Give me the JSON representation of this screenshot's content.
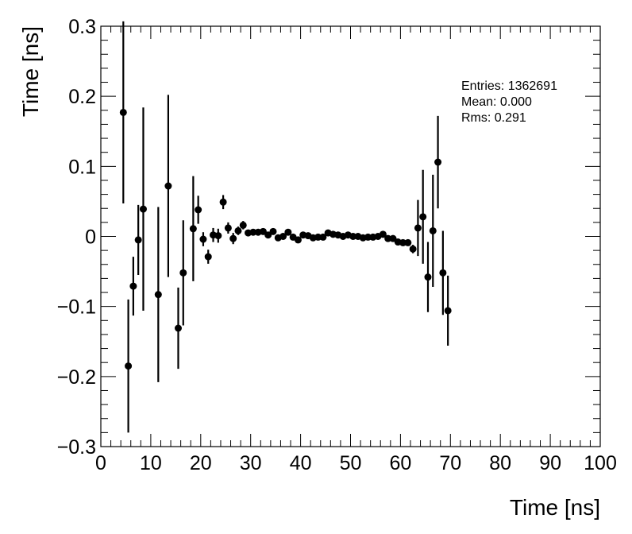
{
  "chart_data": {
    "type": "scatter",
    "xlabel": "Time [ns]",
    "ylabel": "Time [ns]",
    "xlim": [
      0,
      100
    ],
    "ylim": [
      -0.3,
      0.3
    ],
    "x_ticks": [
      0,
      10,
      20,
      30,
      40,
      50,
      60,
      70,
      80,
      90,
      100
    ],
    "y_ticks": [
      -0.3,
      -0.2,
      -0.1,
      0,
      0.1,
      0.2,
      0.3
    ],
    "x_tick_labels": [
      "0",
      "10",
      "20",
      "30",
      "40",
      "50",
      "60",
      "70",
      "80",
      "90",
      "100"
    ],
    "y_tick_labels": [
      "−0.3",
      "−0.2",
      "−0.1",
      "0",
      "0.1",
      "0.2",
      "0.3"
    ],
    "grid": false,
    "stats": {
      "entries": "Entries: 1362691",
      "mean": "Mean: 0.000",
      "rms": "Rms: 0.291"
    },
    "points": [
      {
        "x": 4.5,
        "y": 0.177,
        "err": 0.13
      },
      {
        "x": 5.5,
        "y": -0.185,
        "err": 0.095
      },
      {
        "x": 6.5,
        "y": -0.071,
        "err": 0.042
      },
      {
        "x": 7.5,
        "y": -0.005,
        "err": 0.05
      },
      {
        "x": 8.5,
        "y": 0.039,
        "err": 0.145
      },
      {
        "x": 11.5,
        "y": -0.083,
        "err": 0.125
      },
      {
        "x": 13.5,
        "y": 0.072,
        "err": 0.13
      },
      {
        "x": 15.5,
        "y": -0.131,
        "err": 0.058
      },
      {
        "x": 16.5,
        "y": -0.052,
        "err": 0.075
      },
      {
        "x": 18.5,
        "y": 0.011,
        "err": 0.075
      },
      {
        "x": 19.5,
        "y": 0.038,
        "err": 0.02
      },
      {
        "x": 20.5,
        "y": -0.004,
        "err": 0.01
      },
      {
        "x": 21.5,
        "y": -0.029,
        "err": 0.01
      },
      {
        "x": 22.5,
        "y": 0.002,
        "err": 0.01
      },
      {
        "x": 23.5,
        "y": 0.001,
        "err": 0.01
      },
      {
        "x": 24.5,
        "y": 0.049,
        "err": 0.01
      },
      {
        "x": 25.5,
        "y": 0.012,
        "err": 0.008
      },
      {
        "x": 26.5,
        "y": -0.003,
        "err": 0.008
      },
      {
        "x": 27.5,
        "y": 0.008,
        "err": 0.006
      },
      {
        "x": 28.5,
        "y": 0.016,
        "err": 0.006
      },
      {
        "x": 29.5,
        "y": 0.005,
        "err": 0.004
      },
      {
        "x": 30.5,
        "y": 0.006,
        "err": 0.004
      },
      {
        "x": 31.5,
        "y": 0.006,
        "err": 0.004
      },
      {
        "x": 32.5,
        "y": 0.007,
        "err": 0.004
      },
      {
        "x": 33.5,
        "y": 0.002,
        "err": 0.004
      },
      {
        "x": 34.5,
        "y": 0.007,
        "err": 0.004
      },
      {
        "x": 35.5,
        "y": -0.002,
        "err": 0.004
      },
      {
        "x": 36.5,
        "y": 0.0,
        "err": 0.004
      },
      {
        "x": 37.5,
        "y": 0.006,
        "err": 0.004
      },
      {
        "x": 38.5,
        "y": -0.001,
        "err": 0.004
      },
      {
        "x": 39.5,
        "y": -0.005,
        "err": 0.004
      },
      {
        "x": 40.5,
        "y": 0.002,
        "err": 0.004
      },
      {
        "x": 41.5,
        "y": 0.001,
        "err": 0.004
      },
      {
        "x": 42.5,
        "y": -0.002,
        "err": 0.004
      },
      {
        "x": 43.5,
        "y": -0.001,
        "err": 0.004
      },
      {
        "x": 44.5,
        "y": -0.001,
        "err": 0.004
      },
      {
        "x": 45.5,
        "y": 0.005,
        "err": 0.004
      },
      {
        "x": 46.5,
        "y": 0.003,
        "err": 0.004
      },
      {
        "x": 47.5,
        "y": 0.002,
        "err": 0.004
      },
      {
        "x": 48.5,
        "y": 0.0,
        "err": 0.004
      },
      {
        "x": 49.5,
        "y": 0.002,
        "err": 0.004
      },
      {
        "x": 50.5,
        "y": 0.0,
        "err": 0.004
      },
      {
        "x": 51.5,
        "y": 0.0,
        "err": 0.004
      },
      {
        "x": 52.5,
        "y": -0.002,
        "err": 0.004
      },
      {
        "x": 53.5,
        "y": -0.001,
        "err": 0.004
      },
      {
        "x": 54.5,
        "y": -0.001,
        "err": 0.004
      },
      {
        "x": 55.5,
        "y": 0.0,
        "err": 0.004
      },
      {
        "x": 56.5,
        "y": 0.003,
        "err": 0.004
      },
      {
        "x": 57.5,
        "y": -0.003,
        "err": 0.004
      },
      {
        "x": 58.5,
        "y": -0.003,
        "err": 0.004
      },
      {
        "x": 59.5,
        "y": -0.008,
        "err": 0.004
      },
      {
        "x": 60.5,
        "y": -0.009,
        "err": 0.004
      },
      {
        "x": 61.5,
        "y": -0.009,
        "err": 0.004
      },
      {
        "x": 62.5,
        "y": -0.018,
        "err": 0.006
      },
      {
        "x": 63.5,
        "y": 0.012,
        "err": 0.04
      },
      {
        "x": 64.5,
        "y": 0.028,
        "err": 0.067
      },
      {
        "x": 65.5,
        "y": -0.058,
        "err": 0.05
      },
      {
        "x": 66.5,
        "y": 0.008,
        "err": 0.08
      },
      {
        "x": 67.5,
        "y": 0.106,
        "err": 0.066
      },
      {
        "x": 68.5,
        "y": -0.052,
        "err": 0.06
      },
      {
        "x": 69.5,
        "y": -0.106,
        "err": 0.05
      }
    ]
  }
}
